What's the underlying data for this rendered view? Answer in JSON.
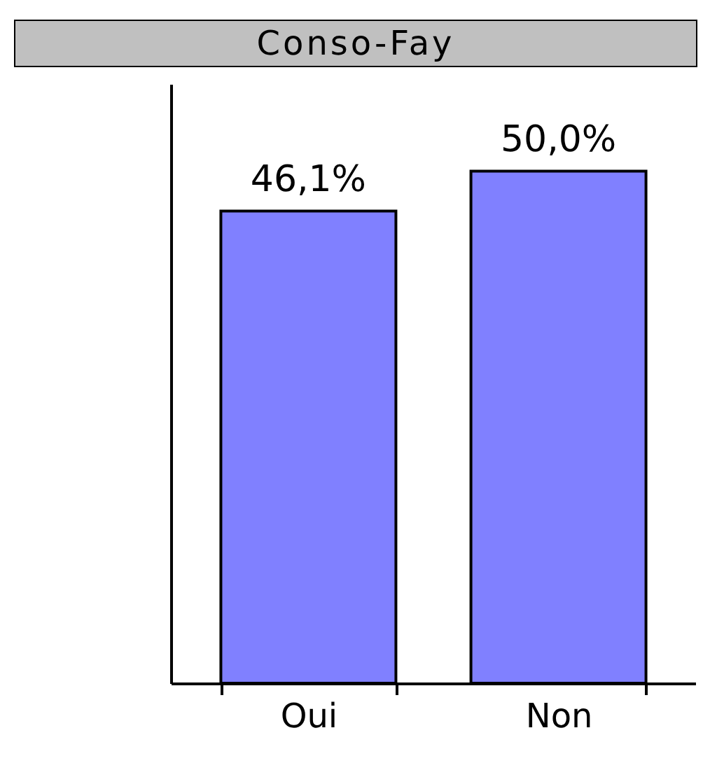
{
  "chart_data": {
    "type": "bar",
    "title": "Conso-Fay",
    "categories": [
      "Oui",
      "Non"
    ],
    "values": [
      46.1,
      50.0
    ],
    "value_labels": [
      "46,1%",
      "50,0%"
    ],
    "color": "#8080ff",
    "tick_labels": "x"
  }
}
